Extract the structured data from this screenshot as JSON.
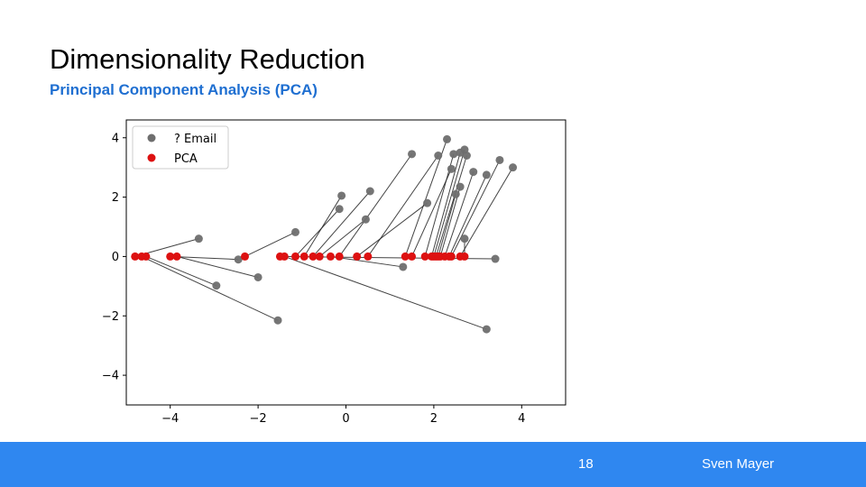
{
  "slide": {
    "title": "Dimensionality Reduction",
    "subtitle": "Principal Component Analysis (PCA)",
    "page_number": "18",
    "author": "Sven Mayer"
  },
  "colors": {
    "subtitle": "#1f6fd1",
    "footer": "#2f87f0",
    "email_points": "#6e6e6e",
    "pca_points": "#dd1111"
  },
  "chart_data": {
    "type": "scatter",
    "title": "",
    "xlabel": "",
    "ylabel": "",
    "xlim": [
      -5.0,
      5.0
    ],
    "ylim": [
      -5.0,
      4.6
    ],
    "xticks": [
      -4,
      -2,
      0,
      2,
      4
    ],
    "yticks": [
      -4,
      -2,
      0,
      2,
      4
    ],
    "xtick_labels": [
      "−4",
      "−2",
      "0",
      "2",
      "4"
    ],
    "ytick_labels": [
      "−4",
      "−2",
      "0",
      "2",
      "4"
    ],
    "legend_position": "top-left",
    "series": [
      {
        "name": "? Email",
        "color": "#6e6e6e"
      },
      {
        "name": "PCA",
        "color": "#dd1111"
      }
    ],
    "pairs": [
      {
        "email": [
          -3.35,
          0.6
        ],
        "pca": [
          -4.8,
          0.0
        ]
      },
      {
        "email": [
          -2.95,
          -0.98
        ],
        "pca": [
          -4.55,
          0.0
        ]
      },
      {
        "email": [
          -1.55,
          -2.15
        ],
        "pca": [
          -4.65,
          0.0
        ]
      },
      {
        "email": [
          -2.45,
          -0.1
        ],
        "pca": [
          -4.0,
          0.0
        ]
      },
      {
        "email": [
          -2.0,
          -0.7
        ],
        "pca": [
          -3.85,
          0.0
        ]
      },
      {
        "email": [
          -1.15,
          0.82
        ],
        "pca": [
          -2.3,
          0.0
        ]
      },
      {
        "email": [
          3.4,
          -0.08
        ],
        "pca": [
          -1.5,
          0.0
        ]
      },
      {
        "email": [
          3.2,
          -2.45
        ],
        "pca": [
          -1.4,
          0.0
        ]
      },
      {
        "email": [
          -0.15,
          1.6
        ],
        "pca": [
          -1.15,
          0.0
        ]
      },
      {
        "email": [
          -0.1,
          2.05
        ],
        "pca": [
          -0.95,
          0.0
        ]
      },
      {
        "email": [
          0.55,
          2.2
        ],
        "pca": [
          -0.75,
          0.0
        ]
      },
      {
        "email": [
          0.45,
          1.25
        ],
        "pca": [
          -0.6,
          0.0
        ]
      },
      {
        "email": [
          1.3,
          -0.35
        ],
        "pca": [
          -0.35,
          0.0
        ]
      },
      {
        "email": [
          1.5,
          3.45
        ],
        "pca": [
          -0.15,
          0.0
        ]
      },
      {
        "email": [
          1.85,
          1.8
        ],
        "pca": [
          0.25,
          0.0
        ]
      },
      {
        "email": [
          2.1,
          3.4
        ],
        "pca": [
          0.5,
          0.0
        ]
      },
      {
        "email": [
          2.3,
          3.95
        ],
        "pca": [
          1.35,
          0.0
        ]
      },
      {
        "email": [
          2.4,
          2.95
        ],
        "pca": [
          1.5,
          0.0
        ]
      },
      {
        "email": [
          2.45,
          3.45
        ],
        "pca": [
          1.8,
          0.0
        ]
      },
      {
        "email": [
          2.6,
          3.5
        ],
        "pca": [
          1.95,
          0.0
        ]
      },
      {
        "email": [
          2.7,
          3.6
        ],
        "pca": [
          2.0,
          0.0
        ]
      },
      {
        "email": [
          2.75,
          3.4
        ],
        "pca": [
          2.05,
          0.0
        ]
      },
      {
        "email": [
          2.6,
          2.35
        ],
        "pca": [
          2.15,
          0.0
        ]
      },
      {
        "email": [
          2.9,
          2.85
        ],
        "pca": [
          2.25,
          0.0
        ]
      },
      {
        "email": [
          3.2,
          2.75
        ],
        "pca": [
          2.35,
          0.0
        ]
      },
      {
        "email": [
          3.5,
          3.25
        ],
        "pca": [
          2.4,
          0.0
        ]
      },
      {
        "email": [
          3.8,
          3.0
        ],
        "pca": [
          2.6,
          0.0
        ]
      },
      {
        "email": [
          2.7,
          0.6
        ],
        "pca": [
          2.7,
          0.0
        ]
      },
      {
        "email": [
          2.5,
          2.1
        ],
        "pca": [
          2.1,
          0.0
        ]
      }
    ]
  }
}
